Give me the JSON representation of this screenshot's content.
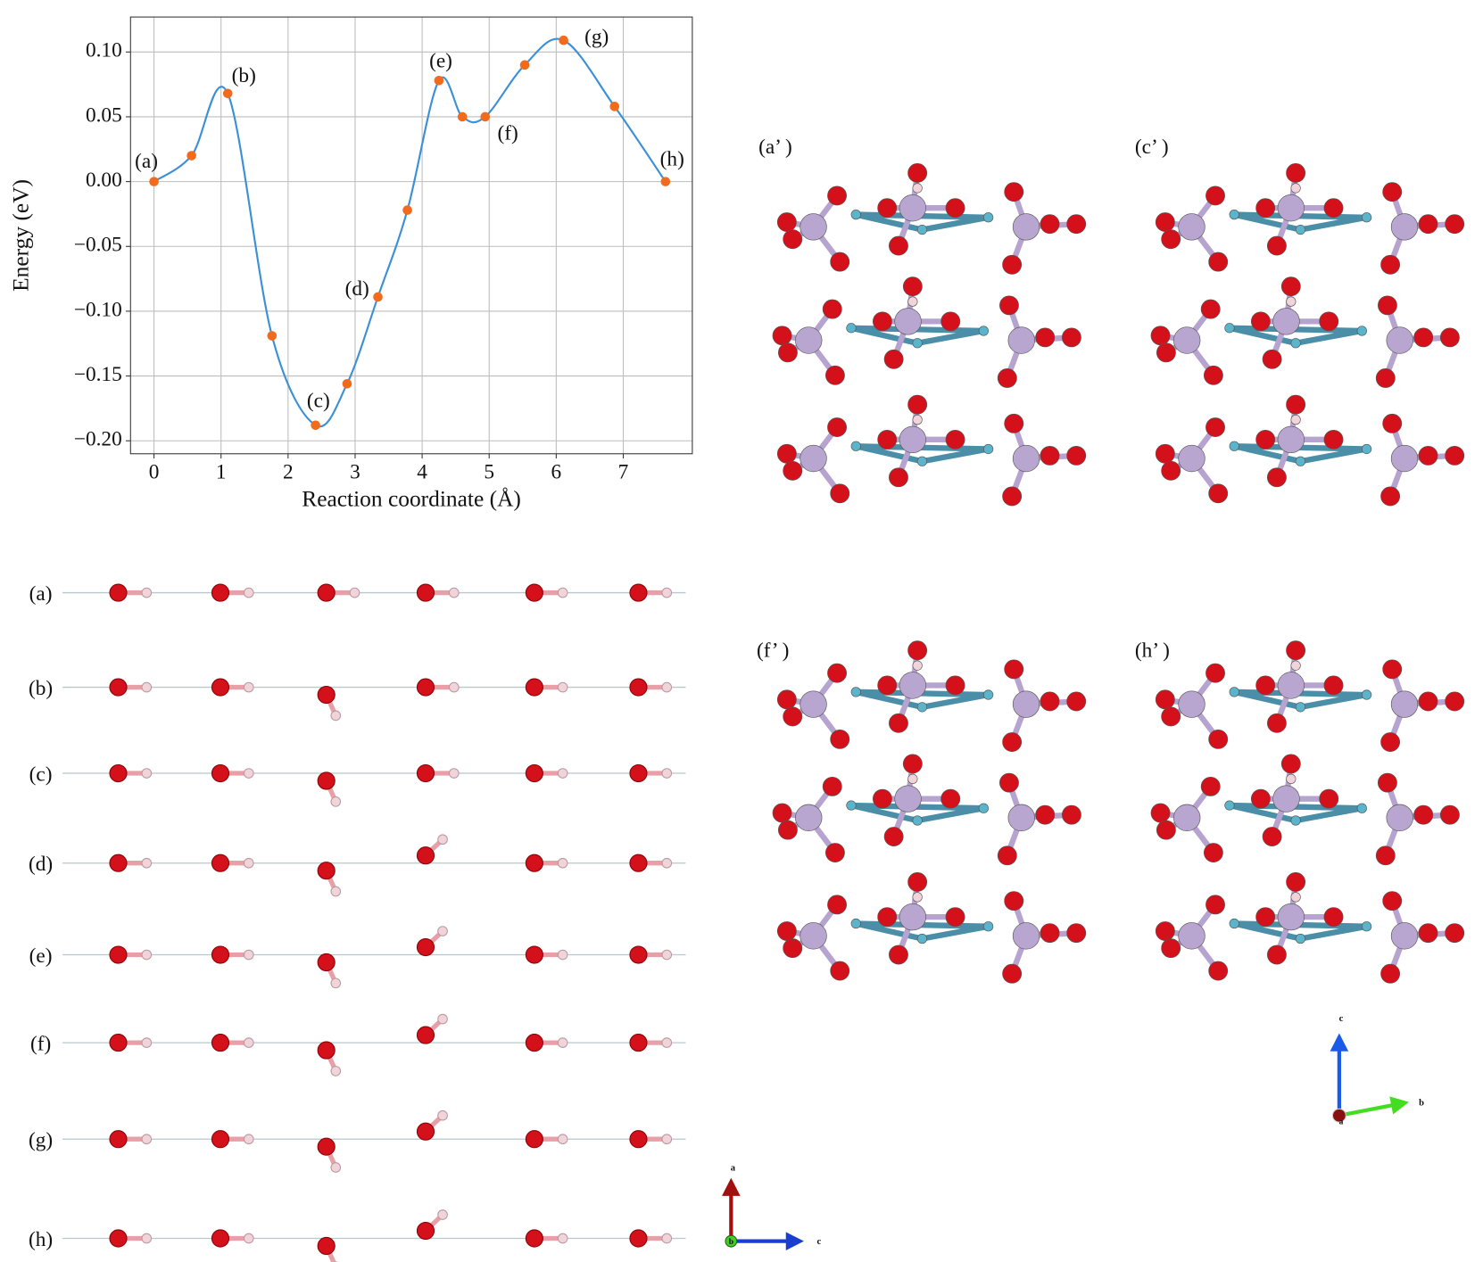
{
  "chart_data": {
    "type": "line",
    "x_label": "Reaction coordinate (Å)",
    "y_label": "Energy (eV)",
    "x": [
      0,
      0.56,
      1.1,
      1.76,
      2.41,
      2.88,
      3.34,
      3.78,
      4.25,
      4.6,
      4.94,
      5.53,
      6.11,
      6.87,
      7.63
    ],
    "values": [
      0,
      0.02,
      0.068,
      -0.119,
      -0.188,
      -0.156,
      -0.089,
      -0.022,
      0.078,
      0.05,
      0.05,
      0.09,
      0.109,
      0.058,
      0
    ],
    "point_labels": [
      "(a)",
      null,
      "(b)",
      null,
      "(c)",
      null,
      "(d)",
      null,
      "(e)",
      null,
      "(f)",
      null,
      "(g)",
      null,
      "(h)"
    ],
    "line_color": "#3a8fd8",
    "point_color": "#f26b1d",
    "xlim": [
      -0.35,
      8.03
    ],
    "xticks": [
      0,
      1,
      2,
      3,
      4,
      5,
      6,
      7
    ],
    "ylim": [
      -0.21,
      0.127
    ],
    "yticks": [
      {
        "value": -0.2,
        "label": "−0.20"
      },
      {
        "value": -0.15,
        "label": "−0.15"
      },
      {
        "value": -0.1,
        "label": "−0.10"
      },
      {
        "value": -0.05,
        "label": "−0.05"
      },
      {
        "value": 0,
        "label": "0.00"
      },
      0.05,
      {
        "value": 0.1,
        "label": "0.10"
      }
    ],
    "grid": true
  },
  "structures": {
    "row_labels": [
      "(a)",
      "(b)",
      "(c)",
      "(d)",
      "(e)",
      "(f)",
      "(g)",
      "(h)"
    ],
    "panel_labels": [
      "(a’ )",
      "(c’ )",
      "(f’ )",
      "(h’ )"
    ],
    "left_axes": [
      "a",
      "b",
      "c"
    ],
    "right_axes": [
      "c",
      "b",
      "a"
    ]
  }
}
